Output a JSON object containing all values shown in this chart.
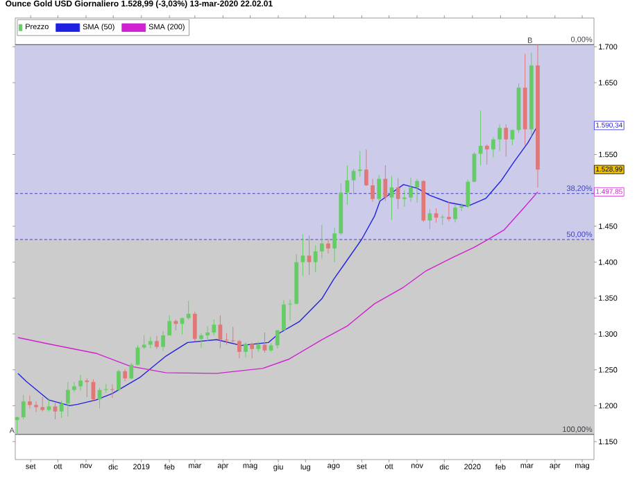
{
  "chart_data": {
    "type": "candlestick",
    "title": "Ounce Gold USD Giornaliero 1.528,99 (-3,03%) 13-mar-2020 22.02.01",
    "xlim": [
      "2018-08-15",
      "2020-05-14"
    ],
    "xticks": [
      {
        "value": "2018-09-01",
        "label": "set"
      },
      {
        "value": "2018-10-01",
        "label": "ott"
      },
      {
        "value": "2018-11-01",
        "label": "nov"
      },
      {
        "value": "2018-12-01",
        "label": "dic"
      },
      {
        "value": "2019-01-01",
        "label": "2019"
      },
      {
        "value": "2019-02-01",
        "label": "feb"
      },
      {
        "value": "2019-03-01",
        "label": "mar"
      },
      {
        "value": "2019-04-01",
        "label": "apr"
      },
      {
        "value": "2019-05-01",
        "label": "mag"
      },
      {
        "value": "2019-06-01",
        "label": "giu"
      },
      {
        "value": "2019-07-01",
        "label": "lug"
      },
      {
        "value": "2019-08-01",
        "label": "ago"
      },
      {
        "value": "2019-09-01",
        "label": "set"
      },
      {
        "value": "2019-10-01",
        "label": "ott"
      },
      {
        "value": "2019-11-01",
        "label": "nov"
      },
      {
        "value": "2019-12-01",
        "label": "dic"
      },
      {
        "value": "2020-01-01",
        "label": "2020"
      },
      {
        "value": "2020-02-01",
        "label": "feb"
      },
      {
        "value": "2020-03-01",
        "label": "mar"
      },
      {
        "value": "2020-04-01",
        "label": "apr"
      },
      {
        "value": "2020-05-01",
        "label": "mag"
      }
    ],
    "ylim": [
      1125,
      1740
    ],
    "yticks": [
      {
        "value": 1150,
        "label": "1.150"
      },
      {
        "value": 1200,
        "label": "1.200"
      },
      {
        "value": 1250,
        "label": "1.250"
      },
      {
        "value": 1300,
        "label": "1.300"
      },
      {
        "value": 1350,
        "label": "1.350"
      },
      {
        "value": 1400,
        "label": "1.400"
      },
      {
        "value": 1450,
        "label": "1.450"
      },
      {
        "value": 1550,
        "label": "1.550"
      },
      {
        "value": 1650,
        "label": "1.650"
      },
      {
        "value": 1700,
        "label": "1.700"
      }
    ],
    "legend": "top left",
    "bands": [
      {
        "axis": "y",
        "from": 1431.5,
        "to": 1703,
        "color": "#ccccea"
      },
      {
        "axis": "y",
        "from": 1160,
        "to": 1431.5,
        "color": "#cccccc"
      }
    ],
    "ref_lines": [
      {
        "axis": "y",
        "value": 1703,
        "color": "#404048",
        "line_style": "solid"
      },
      {
        "axis": "y",
        "value": 1495.6,
        "color": "#4040c0",
        "line_style": "dashed"
      },
      {
        "axis": "y",
        "value": 1431.5,
        "color": "#4040c0",
        "line_style": "dashed"
      },
      {
        "axis": "y",
        "value": 1160,
        "color": "#404048",
        "line_style": "solid"
      }
    ],
    "annotations": [
      {
        "text": "A",
        "x": "2018-08-16",
        "y": 1160
      },
      {
        "text": "B",
        "x": "2020-03-09",
        "y": 1703
      },
      {
        "text": "0,00%",
        "x": "2020-05-14",
        "y": 1703
      },
      {
        "text": "38,20%",
        "x": "2020-05-14",
        "y": 1495.6
      },
      {
        "text": "50,00%",
        "x": "2020-05-14",
        "y": 1431.5
      },
      {
        "text": "100,00%",
        "x": "2020-05-14",
        "y": 1160
      },
      {
        "text": "1.590,34",
        "x": "2020-05-14",
        "y": 1590.34
      },
      {
        "text": "1.528,99",
        "x": "2020-05-14",
        "y": 1528.99
      },
      {
        "text": "1.497,85",
        "x": "2020-05-14",
        "y": 1497.85
      }
    ],
    "series": [
      {
        "name": "Prezzo",
        "x": [
          "2018-08-17",
          "2018-08-24",
          "2018-08-31",
          "2018-09-07",
          "2018-09-14",
          "2018-09-21",
          "2018-09-28",
          "2018-10-05",
          "2018-10-12",
          "2018-10-19",
          "2018-10-26",
          "2018-11-02",
          "2018-11-09",
          "2018-11-16",
          "2018-11-23",
          "2018-11-30",
          "2018-12-07",
          "2018-12-14",
          "2018-12-21",
          "2018-12-28",
          "2019-01-04",
          "2019-01-11",
          "2019-01-18",
          "2019-01-25",
          "2019-02-01",
          "2019-02-08",
          "2019-02-15",
          "2019-02-22",
          "2019-03-01",
          "2019-03-08",
          "2019-03-15",
          "2019-03-22",
          "2019-03-29",
          "2019-04-05",
          "2019-04-12",
          "2019-04-19",
          "2019-04-26",
          "2019-05-03",
          "2019-05-10",
          "2019-05-17",
          "2019-05-24",
          "2019-05-31",
          "2019-06-07",
          "2019-06-14",
          "2019-06-21",
          "2019-06-28",
          "2019-07-05",
          "2019-07-12",
          "2019-07-19",
          "2019-07-26",
          "2019-08-02",
          "2019-08-09",
          "2019-08-16",
          "2019-08-23",
          "2019-08-30",
          "2019-09-06",
          "2019-09-13",
          "2019-09-20",
          "2019-09-27",
          "2019-10-04",
          "2019-10-11",
          "2019-10-18",
          "2019-10-25",
          "2019-11-01",
          "2019-11-08",
          "2019-11-15",
          "2019-11-22",
          "2019-11-29",
          "2019-12-06",
          "2019-12-13",
          "2019-12-20",
          "2019-12-27",
          "2020-01-03",
          "2020-01-10",
          "2020-01-17",
          "2020-01-24",
          "2020-01-31",
          "2020-02-07",
          "2020-02-14",
          "2020-02-21",
          "2020-02-28",
          "2020-03-06",
          "2020-03-13"
        ],
        "ohlc": [
          [
            1180,
            1185,
            1160,
            1184
          ],
          [
            1184,
            1215,
            1181,
            1206
          ],
          [
            1206,
            1214,
            1196,
            1201
          ],
          [
            1201,
            1206,
            1191,
            1198
          ],
          [
            1198,
            1212,
            1192,
            1194
          ],
          [
            1194,
            1210,
            1192,
            1199
          ],
          [
            1199,
            1204,
            1181,
            1192
          ],
          [
            1192,
            1207,
            1183,
            1203
          ],
          [
            1203,
            1233,
            1185,
            1222
          ],
          [
            1222,
            1233,
            1219,
            1227
          ],
          [
            1227,
            1243,
            1221,
            1235
          ],
          [
            1235,
            1238,
            1212,
            1233
          ],
          [
            1233,
            1237,
            1207,
            1209
          ],
          [
            1209,
            1225,
            1196,
            1222
          ],
          [
            1222,
            1230,
            1218,
            1223
          ],
          [
            1223,
            1230,
            1211,
            1222
          ],
          [
            1222,
            1250,
            1220,
            1248
          ],
          [
            1248,
            1251,
            1234,
            1238
          ],
          [
            1238,
            1260,
            1237,
            1257
          ],
          [
            1257,
            1284,
            1256,
            1281
          ],
          [
            1281,
            1298,
            1279,
            1285
          ],
          [
            1285,
            1296,
            1280,
            1290
          ],
          [
            1290,
            1297,
            1279,
            1282
          ],
          [
            1282,
            1304,
            1276,
            1298
          ],
          [
            1298,
            1326,
            1298,
            1318
          ],
          [
            1318,
            1320,
            1305,
            1314
          ],
          [
            1314,
            1323,
            1299,
            1322
          ],
          [
            1322,
            1346,
            1320,
            1328
          ],
          [
            1328,
            1331,
            1290,
            1293
          ],
          [
            1293,
            1301,
            1281,
            1298
          ],
          [
            1298,
            1311,
            1290,
            1302
          ],
          [
            1302,
            1320,
            1298,
            1313
          ],
          [
            1313,
            1326,
            1280,
            1292
          ],
          [
            1292,
            1301,
            1285,
            1291
          ],
          [
            1291,
            1310,
            1288,
            1290
          ],
          [
            1290,
            1292,
            1266,
            1275
          ],
          [
            1275,
            1288,
            1267,
            1286
          ],
          [
            1286,
            1288,
            1266,
            1279
          ],
          [
            1279,
            1289,
            1275,
            1285
          ],
          [
            1285,
            1302,
            1274,
            1277
          ],
          [
            1277,
            1287,
            1275,
            1284
          ],
          [
            1284,
            1306,
            1280,
            1305
          ],
          [
            1305,
            1347,
            1305,
            1341
          ],
          [
            1341,
            1348,
            1319,
            1342
          ],
          [
            1342,
            1411,
            1341,
            1400
          ],
          [
            1400,
            1439,
            1381,
            1409
          ],
          [
            1409,
            1437,
            1382,
            1400
          ],
          [
            1400,
            1423,
            1386,
            1415
          ],
          [
            1415,
            1452,
            1405,
            1426
          ],
          [
            1426,
            1433,
            1412,
            1419
          ],
          [
            1419,
            1448,
            1400,
            1440
          ],
          [
            1440,
            1510,
            1438,
            1497
          ],
          [
            1497,
            1535,
            1480,
            1514
          ],
          [
            1514,
            1530,
            1494,
            1527
          ],
          [
            1527,
            1555,
            1519,
            1529
          ],
          [
            1529,
            1557,
            1506,
            1507
          ],
          [
            1507,
            1516,
            1484,
            1488
          ],
          [
            1488,
            1521,
            1486,
            1516
          ],
          [
            1516,
            1535,
            1485,
            1490
          ],
          [
            1490,
            1520,
            1459,
            1504
          ],
          [
            1504,
            1517,
            1474,
            1488
          ],
          [
            1488,
            1500,
            1477,
            1490
          ],
          [
            1490,
            1518,
            1484,
            1504
          ],
          [
            1504,
            1516,
            1483,
            1513
          ],
          [
            1513,
            1514,
            1456,
            1458
          ],
          [
            1458,
            1474,
            1446,
            1468
          ],
          [
            1468,
            1475,
            1455,
            1462
          ],
          [
            1462,
            1466,
            1452,
            1463
          ],
          [
            1463,
            1484,
            1457,
            1460
          ],
          [
            1460,
            1480,
            1455,
            1476
          ],
          [
            1476,
            1482,
            1471,
            1478
          ],
          [
            1478,
            1515,
            1476,
            1512
          ],
          [
            1512,
            1553,
            1511,
            1551
          ],
          [
            1551,
            1611,
            1535,
            1562
          ],
          [
            1562,
            1564,
            1536,
            1557
          ],
          [
            1557,
            1574,
            1546,
            1571
          ],
          [
            1571,
            1592,
            1555,
            1587
          ],
          [
            1587,
            1592,
            1547,
            1571
          ],
          [
            1571,
            1585,
            1563,
            1584
          ],
          [
            1584,
            1649,
            1580,
            1643
          ],
          [
            1643,
            1690,
            1563,
            1585
          ],
          [
            1585,
            1692,
            1575,
            1674
          ],
          [
            1674,
            1703,
            1504,
            1528.99
          ]
        ],
        "colors": [
          "#66cc66",
          "#66cc66",
          "#e07878",
          "#e07878",
          "#e07878",
          "#66cc66",
          "#e07878",
          "#66cc66",
          "#66cc66",
          "#66cc66",
          "#66cc66",
          "#e07878",
          "#e07878",
          "#66cc66",
          "#66cc66",
          "#e07878",
          "#66cc66",
          "#e07878",
          "#66cc66",
          "#66cc66",
          "#66cc66",
          "#66cc66",
          "#e07878",
          "#66cc66",
          "#66cc66",
          "#e07878",
          "#66cc66",
          "#66cc66",
          "#e07878",
          "#66cc66",
          "#66cc66",
          "#66cc66",
          "#e07878",
          "#e07878",
          "#e07878",
          "#e07878",
          "#66cc66",
          "#e07878",
          "#66cc66",
          "#e07878",
          "#66cc66",
          "#66cc66",
          "#66cc66",
          "#66cc66",
          "#66cc66",
          "#66cc66",
          "#e07878",
          "#66cc66",
          "#66cc66",
          "#e07878",
          "#66cc66",
          "#66cc66",
          "#66cc66",
          "#66cc66",
          "#66cc66",
          "#e07878",
          "#e07878",
          "#66cc66",
          "#e07878",
          "#66cc66",
          "#e07878",
          "#66cc66",
          "#66cc66",
          "#66cc66",
          "#e07878",
          "#66cc66",
          "#e07878",
          "#66cc66",
          "#e07878",
          "#66cc66",
          "#66cc66",
          "#66cc66",
          "#66cc66",
          "#66cc66",
          "#e07878",
          "#66cc66",
          "#66cc66",
          "#e07878",
          "#66cc66",
          "#66cc66",
          "#e07878",
          "#66cc66",
          "#e07878"
        ]
      },
      {
        "name": "SMA (50)",
        "type": "line",
        "color": "#2020e0",
        "x": [
          "2018-08-18",
          "2018-08-27",
          "2018-09-21",
          "2018-10-14",
          "2018-10-23",
          "2018-11-12",
          "2018-11-30",
          "2018-12-31",
          "2019-01-28",
          "2019-02-21",
          "2019-03-25",
          "2019-04-21",
          "2019-05-21",
          "2019-06-02",
          "2019-06-24",
          "2019-07-19",
          "2019-08-01",
          "2019-08-16",
          "2019-09-01",
          "2019-09-15",
          "2019-09-21",
          "2019-10-17",
          "2019-11-01",
          "2019-11-15",
          "2019-12-06",
          "2019-12-27",
          "2020-01-16",
          "2020-02-02",
          "2020-02-16",
          "2020-03-02",
          "2020-03-13"
        ],
        "values": [
          1245,
          1234,
          1208,
          1200,
          1202,
          1208,
          1217,
          1240,
          1269,
          1288,
          1292,
          1284,
          1288,
          1301,
          1317,
          1349,
          1376,
          1403,
          1432,
          1464,
          1485,
          1508,
          1503,
          1493,
          1483,
          1478,
          1489,
          1514,
          1540,
          1566,
          1590.34
        ]
      },
      {
        "name": "SMA (200)",
        "type": "line",
        "color": "#d020d0",
        "x": [
          "2018-08-18",
          "2018-09-21",
          "2018-11-12",
          "2018-12-20",
          "2019-01-28",
          "2019-03-25",
          "2019-05-15",
          "2019-06-13",
          "2019-07-19",
          "2019-08-16",
          "2019-09-15",
          "2019-10-17",
          "2019-11-11",
          "2019-12-11",
          "2020-01-02",
          "2020-01-16",
          "2020-02-05",
          "2020-02-27",
          "2020-03-13"
        ],
        "values": [
          1295,
          1286,
          1273,
          1255,
          1246,
          1245,
          1252,
          1265,
          1292,
          1311,
          1342,
          1365,
          1388,
          1407,
          1420,
          1430,
          1445,
          1476,
          1497.85
        ]
      }
    ]
  }
}
